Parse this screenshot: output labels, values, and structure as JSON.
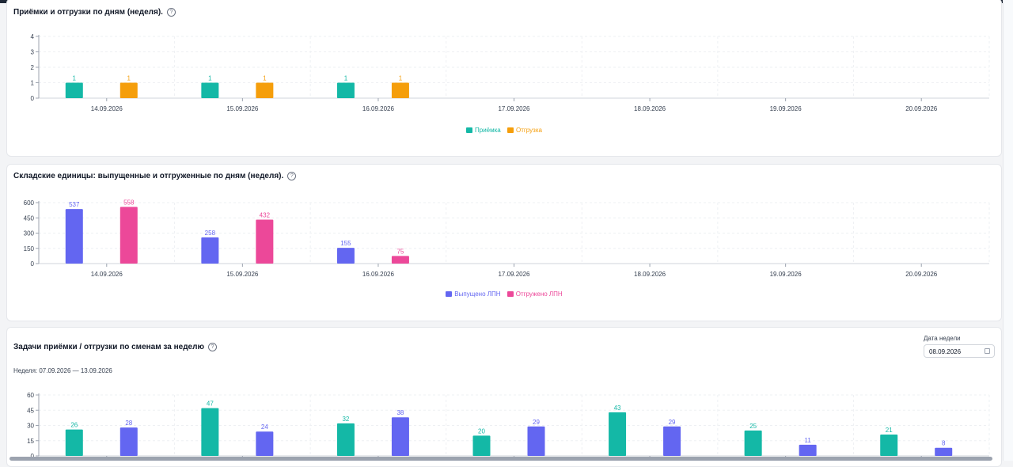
{
  "colors": {
    "teal": "#14b8a6",
    "orange": "#f59e0b",
    "indigo": "#6366f1",
    "pink": "#ec4899"
  },
  "card1": {
    "title": "Приёмки и отгрузки по дням (неделя).",
    "help": "?",
    "legend": [
      "Приёмка",
      "Отгрузка"
    ]
  },
  "card2": {
    "title": "Складские единицы: выпущенные и отгруженные по дням (неделя).",
    "help": "?",
    "legend": [
      "Выпущено ЛПН",
      "Отгружено ЛПН"
    ]
  },
  "card3": {
    "title": "Задачи приёмки / отгрузки по сменам за неделю",
    "help": "?",
    "week_label": "Неделя: 07.09.2026 — 13.09.2026",
    "date_caption": "Дата недели",
    "date_value": "08.09.2026"
  },
  "chart_data": [
    {
      "type": "bar",
      "categories": [
        "14.09.2026",
        "15.09.2026",
        "16.09.2026",
        "17.09.2026",
        "18.09.2026",
        "19.09.2026",
        "20.09.2026"
      ],
      "series": [
        {
          "name": "Приёмка",
          "values": [
            1,
            1,
            1,
            0,
            0,
            0,
            0
          ],
          "color": "#14b8a6"
        },
        {
          "name": "Отгрузка",
          "values": [
            1,
            1,
            1,
            0,
            0,
            0,
            0
          ],
          "color": "#f59e0b"
        }
      ],
      "yticks": [
        0,
        1,
        2,
        3,
        4
      ],
      "ylim": [
        0,
        4
      ],
      "title": "Приёмки и отгрузки по дням (неделя).",
      "grid": true,
      "legend": "bottom"
    },
    {
      "type": "bar",
      "categories": [
        "14.09.2026",
        "15.09.2026",
        "16.09.2026",
        "17.09.2026",
        "18.09.2026",
        "19.09.2026",
        "20.09.2026"
      ],
      "series": [
        {
          "name": "Выпущено ЛПН",
          "values": [
            537,
            258,
            155,
            0,
            0,
            0,
            0
          ],
          "color": "#6366f1"
        },
        {
          "name": "Отгружено ЛПН",
          "values": [
            558,
            432,
            75,
            0,
            0,
            0,
            0
          ],
          "color": "#ec4899"
        }
      ],
      "yticks": [
        0,
        150,
        300,
        450,
        600
      ],
      "ylim": [
        0,
        600
      ],
      "title": "Складские единицы: выпущенные и отгруженные по дням (неделя).",
      "grid": true,
      "legend": "bottom"
    },
    {
      "type": "bar",
      "categories": [
        "",
        "",
        "",
        "",
        "",
        "",
        ""
      ],
      "series": [
        {
          "name": "",
          "values": [
            26,
            47,
            32,
            20,
            43,
            25,
            21
          ],
          "color": "#14b8a6"
        },
        {
          "name": "",
          "values": [
            28,
            24,
            38,
            29,
            29,
            11,
            8
          ],
          "color": "#6366f1"
        }
      ],
      "yticks": [
        0,
        15,
        30,
        45,
        60
      ],
      "ylim": [
        0,
        60
      ],
      "title": "Задачи приёмки / отгрузки по сменам за неделю",
      "grid": true
    }
  ]
}
